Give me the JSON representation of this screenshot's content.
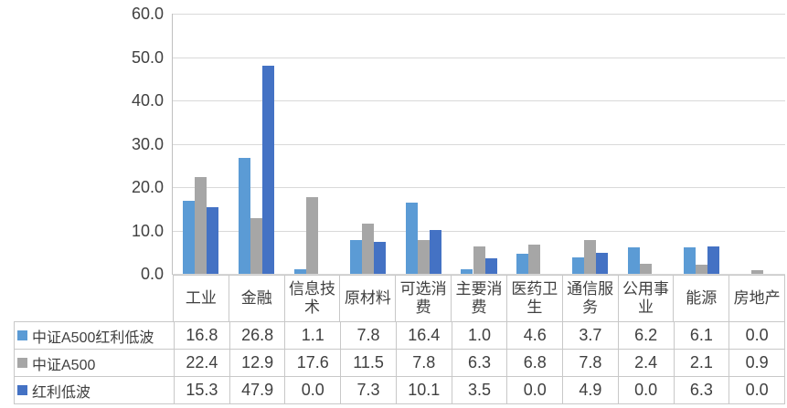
{
  "chart_data": {
    "type": "bar",
    "title": "",
    "xlabel": "",
    "ylabel": "",
    "categories": [
      "工业",
      "金融",
      "信息技术",
      "原材料",
      "可选消费",
      "主要消费",
      "医药卫生",
      "通信服务",
      "公用事业",
      "能源",
      "房地产"
    ],
    "series": [
      {
        "name": "中证A500红利低波",
        "color": "#5B9BD5",
        "values": [
          16.8,
          26.8,
          1.1,
          7.8,
          16.4,
          1.0,
          4.6,
          3.7,
          6.2,
          6.1,
          0.0
        ]
      },
      {
        "name": "中证A500",
        "color": "#A6A6A6",
        "values": [
          22.4,
          12.9,
          17.6,
          11.5,
          7.8,
          6.3,
          6.8,
          7.8,
          2.4,
          2.1,
          0.9
        ]
      },
      {
        "name": "红利低波",
        "color": "#4472C4",
        "values": [
          15.3,
          47.9,
          0.0,
          7.3,
          10.1,
          3.5,
          0.0,
          4.9,
          0.0,
          6.3,
          0.0
        ]
      }
    ],
    "ylim": [
      0,
      60
    ],
    "yticks": [
      "60.0",
      "50.0",
      "40.0",
      "30.0",
      "20.0",
      "10.0",
      "0.0"
    ],
    "grid": true,
    "legend_position": "data-table-left",
    "value_decimals": 1
  },
  "style_colors": {
    "gridline": "#D9D9D9",
    "axis": "#BFBFBF",
    "table_border": "#C8C8C8",
    "text": "#404040"
  }
}
